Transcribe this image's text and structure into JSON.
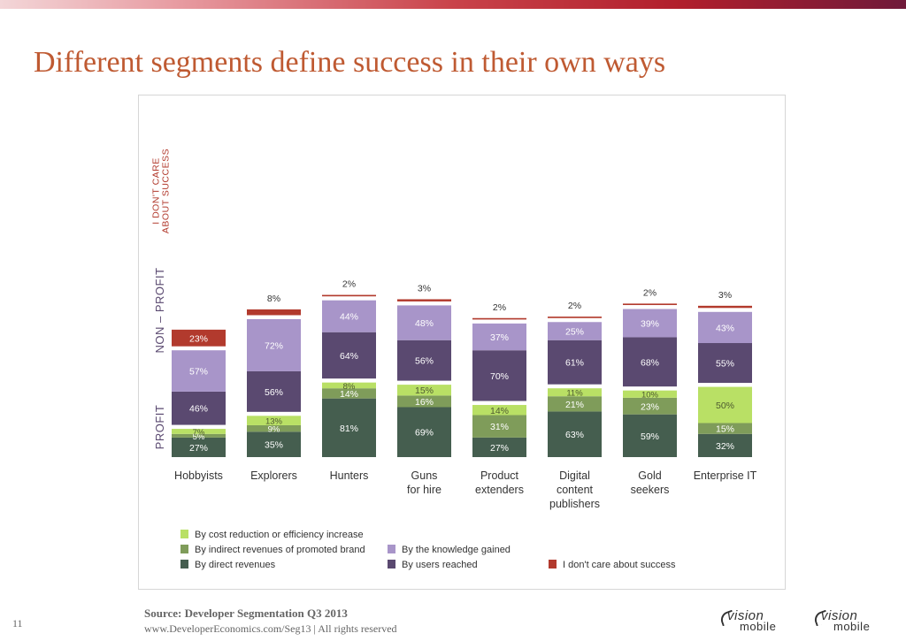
{
  "slide": {
    "title": "Different segments define success in their own ways",
    "page_number": "11",
    "source": "Source: Developer Segmentation Q3 2013",
    "credits": "www.DeveloperEconomics.com/Seg13 | All rights reserved",
    "logo_line1": "vision",
    "logo_line2": "mobile"
  },
  "colors": {
    "direct": "#455e4f",
    "indirect": "#7f9c5a",
    "cost": "#b9e065",
    "users": "#5a4970",
    "knowledge": "#a895c9",
    "dont_care": "#b23a2d"
  },
  "chart_data": {
    "type": "bar",
    "stacked": true,
    "title": "",
    "xlabel": "",
    "ylabel": "",
    "groups": [
      {
        "label": "PROFIT",
        "series": [
          "By direct revenues",
          "By indirect revenues of promoted brand",
          "By cost reduction or efficiency increase"
        ]
      },
      {
        "label": "NON – PROFIT",
        "series": [
          "By users reached",
          "By the knowledge gained"
        ]
      },
      {
        "label": "I DON'T CARE ABOUT SUCCESS",
        "series": [
          "I don't care about success"
        ]
      }
    ],
    "categories": [
      [
        "Hobbyists"
      ],
      [
        "Explorers"
      ],
      [
        "Hunters"
      ],
      [
        "Guns",
        "for hire"
      ],
      [
        "Product",
        "extenders"
      ],
      [
        "Digital",
        "content",
        "publishers"
      ],
      [
        "Gold",
        "seekers"
      ],
      [
        "Enterprise IT"
      ]
    ],
    "series": [
      {
        "name": "By direct revenues",
        "key": "direct",
        "values": [
          27,
          35,
          81,
          69,
          27,
          63,
          59,
          32
        ]
      },
      {
        "name": "By indirect revenues of promoted brand",
        "key": "indirect",
        "values": [
          5,
          9,
          14,
          16,
          31,
          21,
          23,
          15
        ]
      },
      {
        "name": "By cost reduction or efficiency increase",
        "key": "cost",
        "values": [
          7,
          13,
          8,
          15,
          14,
          11,
          10,
          50
        ]
      },
      {
        "name": "By users reached",
        "key": "users",
        "values": [
          46,
          56,
          64,
          56,
          70,
          61,
          68,
          55
        ]
      },
      {
        "name": "By the knowledge gained",
        "key": "knowledge",
        "values": [
          57,
          72,
          44,
          48,
          37,
          25,
          39,
          43
        ]
      },
      {
        "name": "I don't care about success",
        "key": "dont_care",
        "values": [
          23,
          8,
          2,
          3,
          2,
          2,
          2,
          3
        ]
      }
    ],
    "legend": {
      "position": "bottom",
      "order": [
        "cost",
        "indirect",
        "direct",
        "knowledge",
        "users",
        "dont_care"
      ]
    }
  }
}
